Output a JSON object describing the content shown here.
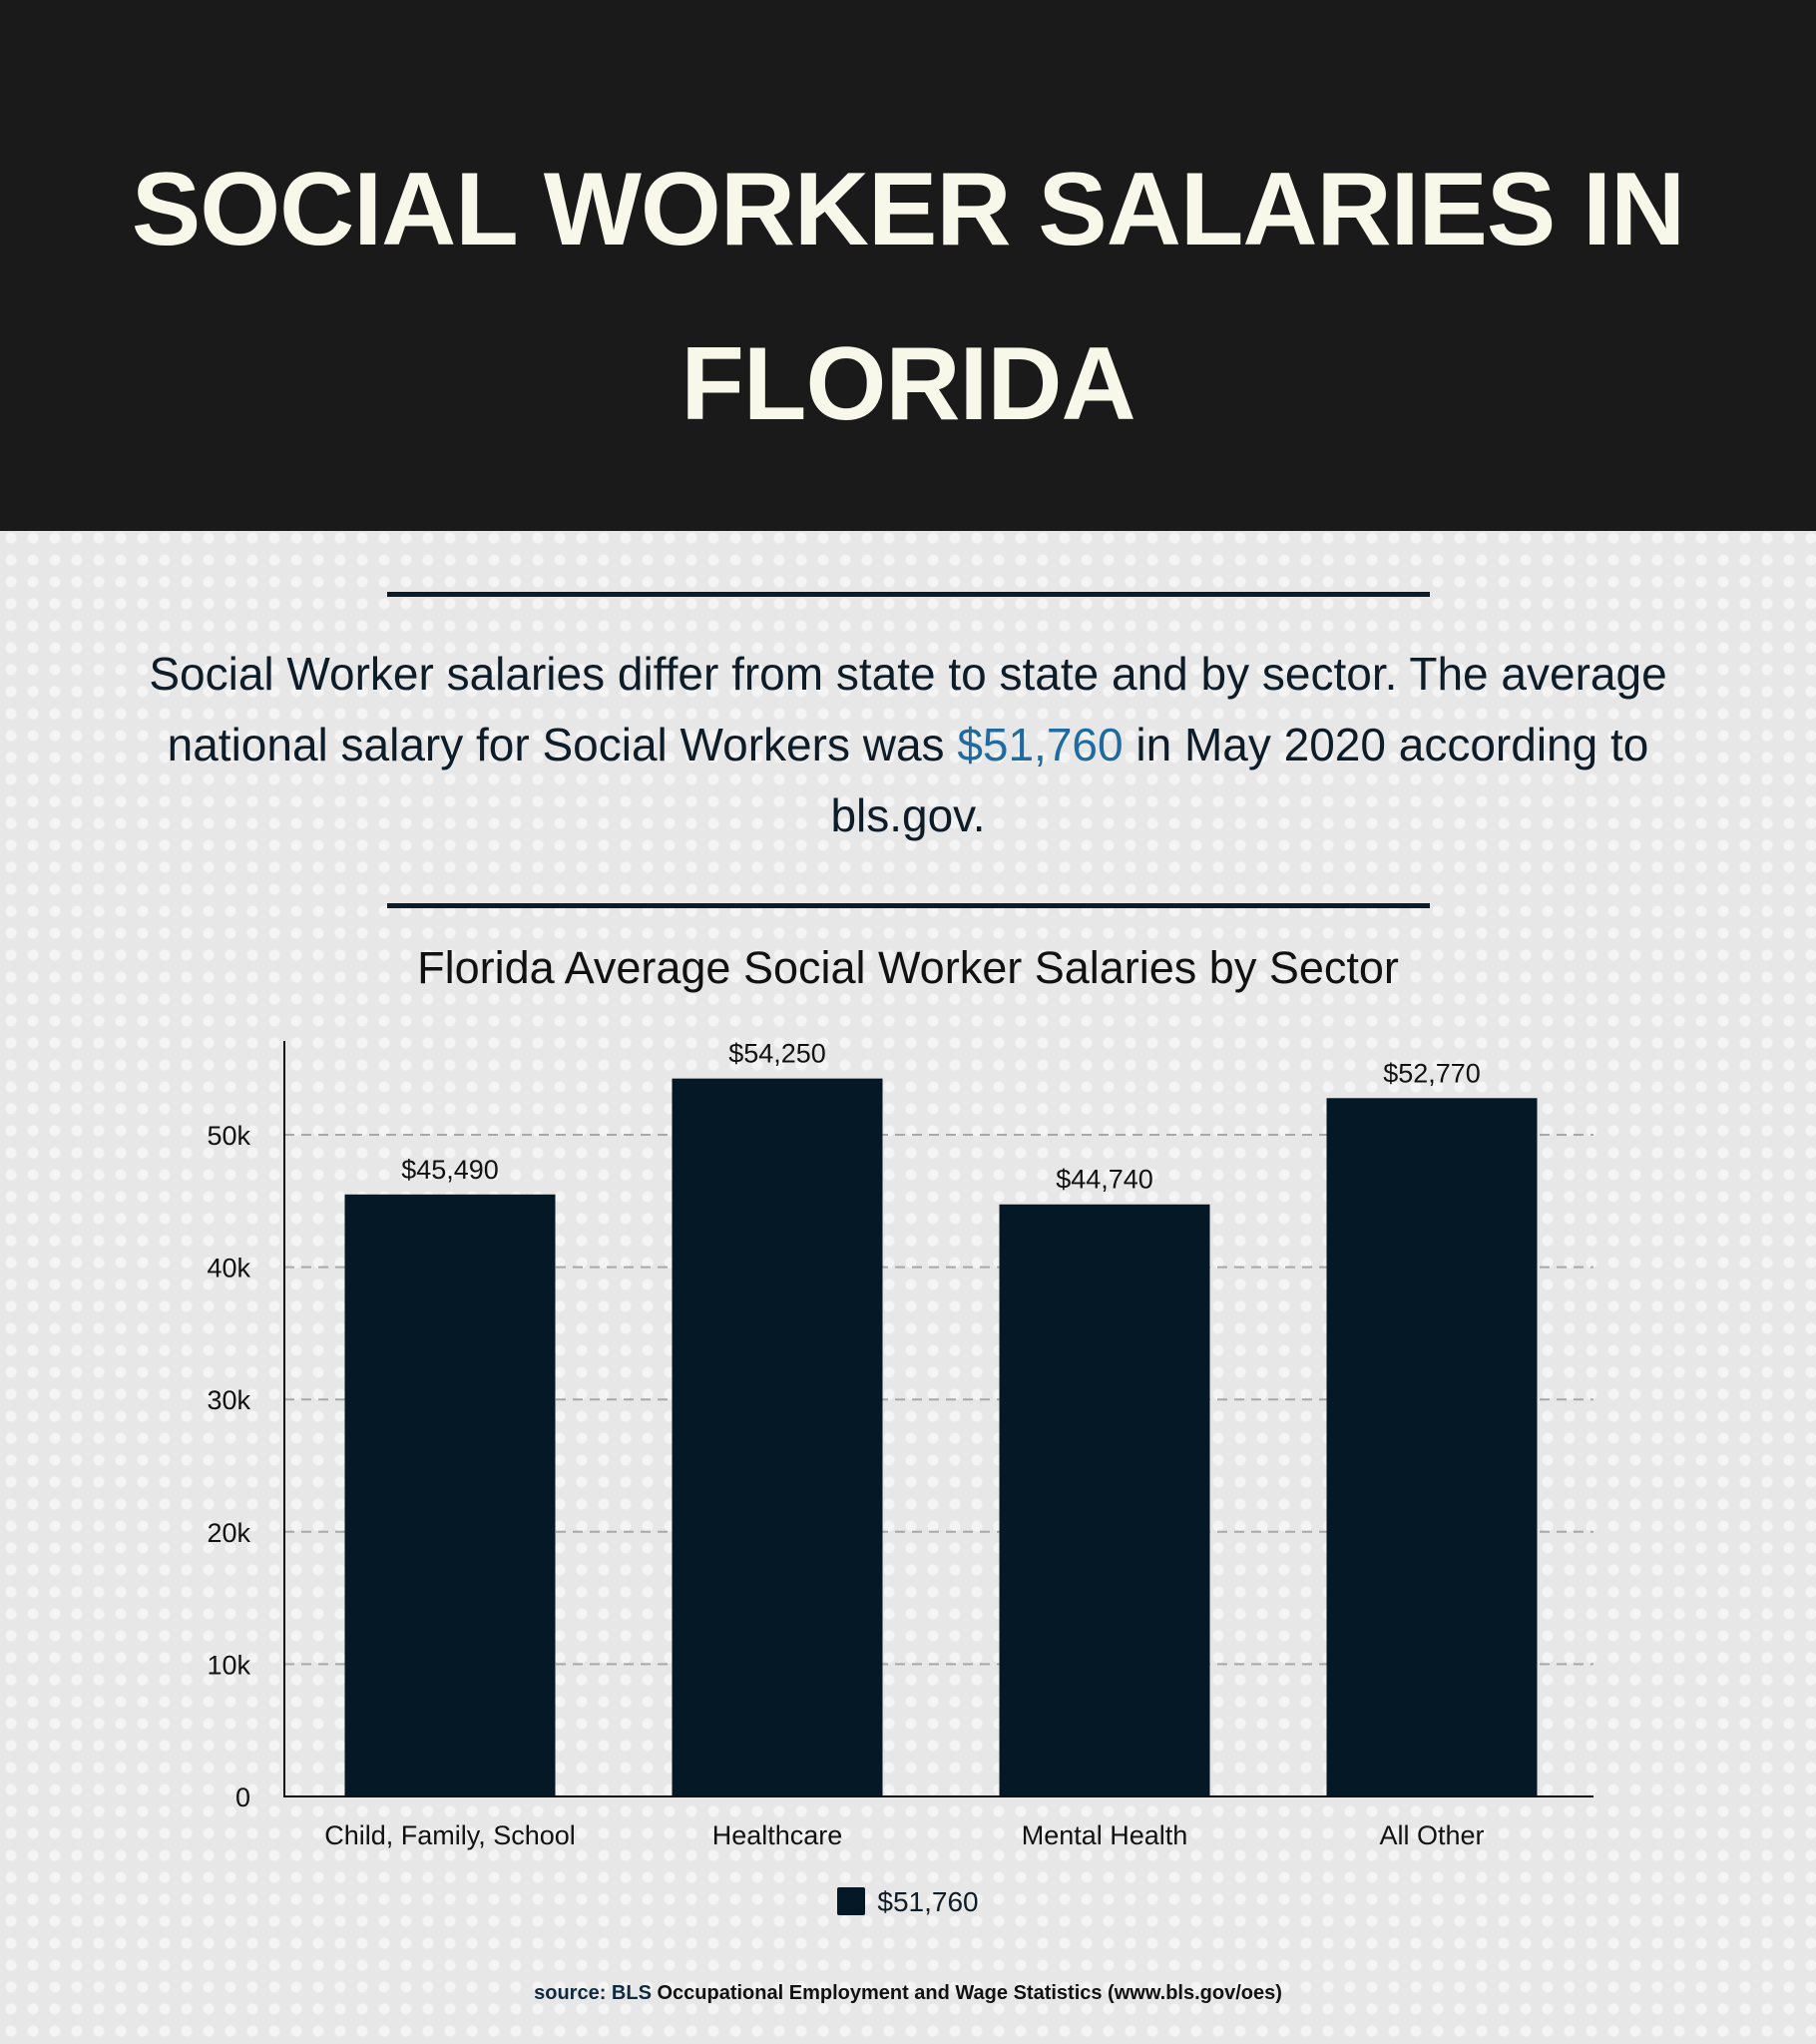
{
  "header": {
    "title_lines": [
      "SOCIAL WORKER SALARIES IN",
      "FLORIDA"
    ]
  },
  "intro": {
    "text_before": "Social Worker salaries differ from state to state and by sector. The average national salary for Social Workers was ",
    "highlight": "$51,760",
    "text_after": " in May 2020 according to bls.gov."
  },
  "colors": {
    "header_bg": "#1a1a1a",
    "title_text": "#f7f7ea",
    "highlight": "#1f6aa0",
    "bar": "#041825",
    "page_bg": "#e7e7e7"
  },
  "chart_data": {
    "type": "bar",
    "title": "Florida Average Social Worker Salaries by Sector",
    "categories": [
      "Child, Family, School",
      "Healthcare",
      "Mental Health",
      "All Other"
    ],
    "series": [
      {
        "name": "$51,760",
        "values": [
          45490,
          54250,
          44740,
          52770
        ],
        "color": "#041825"
      }
    ],
    "data_labels": [
      "$45,490",
      "$54,250",
      "$44,740",
      "$52,770"
    ],
    "ylim": [
      0,
      57000
    ],
    "yticks": [
      0,
      10000,
      20000,
      30000,
      40000,
      50000
    ],
    "ytick_labels": [
      "0",
      "10k",
      "20k",
      "30k",
      "40k",
      "50k"
    ],
    "xlabel": "",
    "ylabel": "",
    "grid": "horizontal dashed",
    "legend": "bottom"
  },
  "source": {
    "label": "source: BLS",
    "text": " Occupational Employment and Wage Statistics (www.bls.gov/oes)"
  }
}
